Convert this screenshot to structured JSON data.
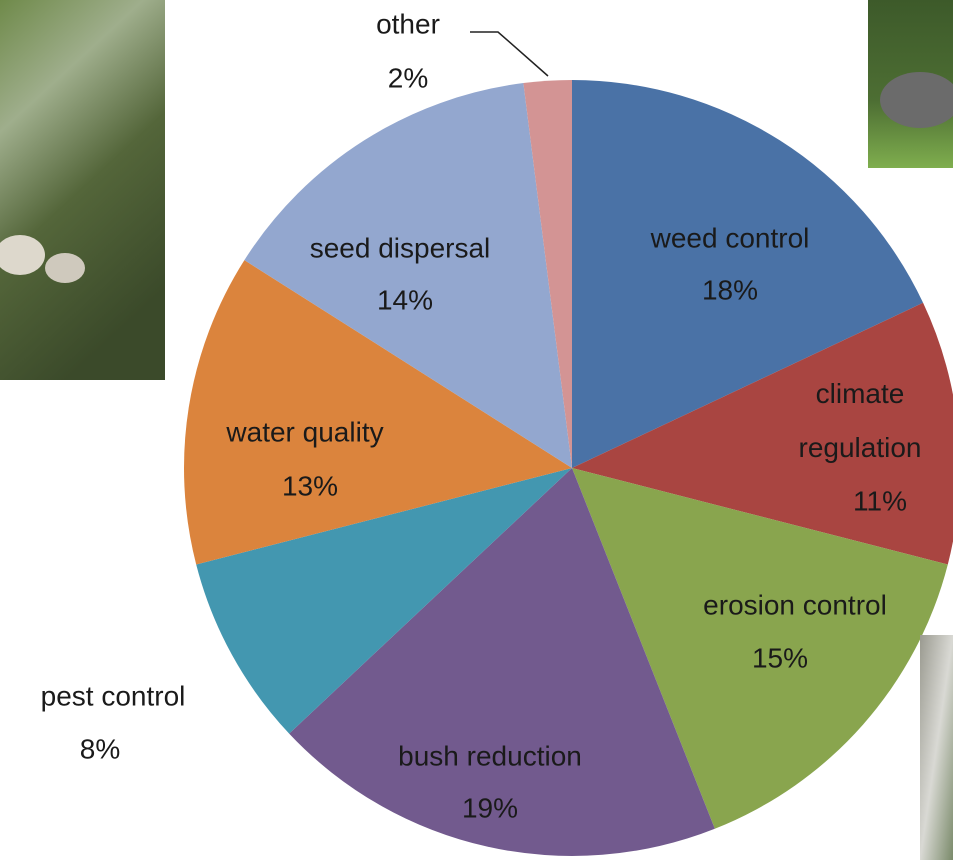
{
  "chart_data": {
    "type": "pie",
    "categories": [
      "weed control",
      "climate regulation",
      "erosion control",
      "bush reduction",
      "pest control",
      "water quality",
      "seed dispersal",
      "other"
    ],
    "values": [
      18,
      11,
      15,
      19,
      8,
      13,
      14,
      2
    ],
    "value_labels": [
      "18%",
      "11%",
      "15%",
      "19%",
      "8%",
      "13%",
      "14%",
      "2%"
    ],
    "colors": [
      "#4a72a6",
      "#a94541",
      "#89a54e",
      "#725a8e",
      "#4397b0",
      "#db843d",
      "#93a7cf",
      "#d39494"
    ]
  }
}
